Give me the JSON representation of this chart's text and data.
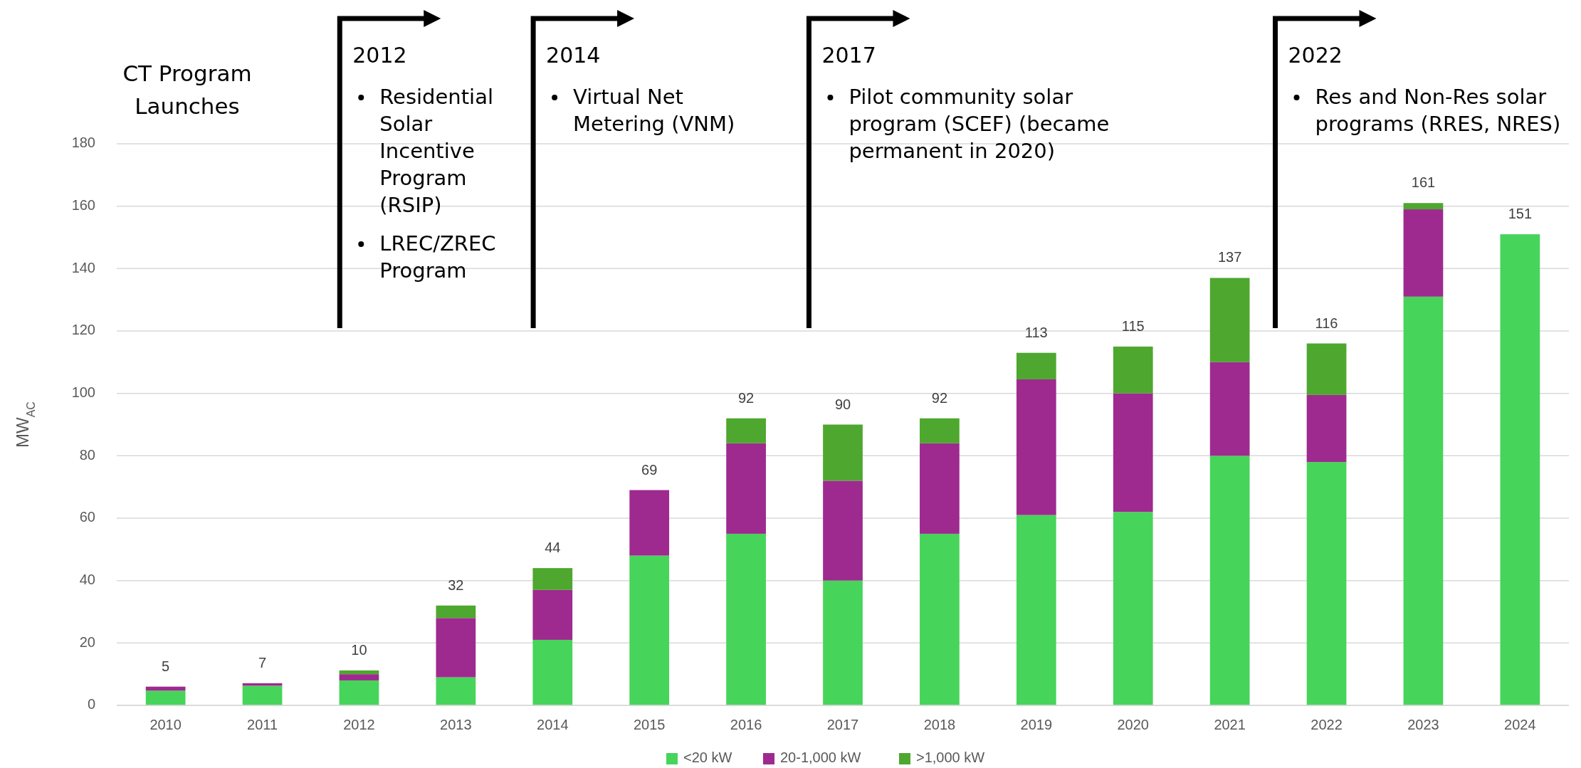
{
  "chart_data": {
    "type": "bar",
    "stacked": true,
    "ylabel": "MW$_{AC}$",
    "categories": [
      "2010",
      "2011",
      "2012",
      "2013",
      "2014",
      "2015",
      "2016",
      "2017",
      "2018",
      "2019",
      "2020",
      "2021",
      "2022",
      "2023",
      "2024"
    ],
    "series": [
      {
        "name": "<20 kW",
        "color": "#47d45a",
        "values": [
          4.7,
          6.3,
          8,
          9,
          21,
          48,
          55,
          40,
          55,
          61,
          62,
          80,
          78,
          131,
          151
        ]
      },
      {
        "name": "20-1,000 kW",
        "color": "#9e2a8f",
        "values": [
          1.3,
          0.8,
          2,
          19,
          16,
          21,
          29,
          32,
          29,
          43.5,
          38,
          30,
          21.5,
          28,
          null
        ]
      },
      {
        "name": ">1,000 kW",
        "color": "#4ea72e",
        "values": [
          null,
          null,
          1.2,
          4,
          7,
          null,
          8,
          18,
          8,
          8.5,
          15,
          27,
          16.5,
          2,
          null
        ]
      }
    ],
    "totals": [
      "5",
      "7",
      "10",
      "32",
      "44",
      "69",
      "92",
      "90",
      "92",
      "113",
      "115",
      "137",
      "116",
      "161",
      "151"
    ],
    "ylim": [
      0,
      180
    ],
    "yticks": [
      0,
      20,
      40,
      60,
      80,
      100,
      120,
      140,
      160,
      180
    ],
    "grid": "y",
    "legend": "bottom",
    "annotations": [
      "CT Program Launches",
      "2012",
      "Residential Solar Incentive Program (RSIP)",
      "LREC/ZREC Program",
      "2014",
      "Virtual Net Metering (VNM)",
      "2017",
      "Pilot community solar program (SCEF) (became permanent in 2020)",
      "2022",
      "Res and Non-Res solar programs (RRES, NRES)"
    ]
  }
}
